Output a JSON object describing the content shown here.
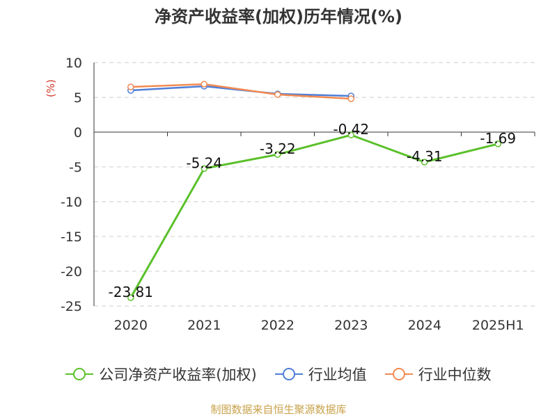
{
  "chart_data": {
    "type": "line",
    "title": "净资产收益率(加权)历年情况(%)",
    "ylabel": "(%)",
    "xlabel": "",
    "categories": [
      "2020",
      "2021",
      "2022",
      "2023",
      "2024",
      "2025H1"
    ],
    "ylim": [
      -25,
      10
    ],
    "yticks": [
      10,
      5,
      0,
      -5,
      -10,
      -15,
      -20,
      -25
    ],
    "grid": true,
    "legend_position": "bottom",
    "series": [
      {
        "name": "公司净资产收益率(加权)",
        "color": "#5ac02a",
        "values": [
          -23.81,
          -5.24,
          -3.22,
          -0.42,
          -4.31,
          -1.69
        ],
        "data_labels": [
          "-23.81",
          "-5.24",
          "-3.22",
          "-0.42",
          "-4.31",
          "-1.69"
        ]
      },
      {
        "name": "行业均值",
        "color": "#4f7ed6",
        "values": [
          6.0,
          6.6,
          5.5,
          5.2,
          null,
          null
        ]
      },
      {
        "name": "行业中位数",
        "color": "#f28a52",
        "values": [
          6.5,
          6.9,
          5.4,
          4.8,
          null,
          null
        ]
      }
    ]
  },
  "legend": {
    "items": [
      {
        "label": "公司净资产收益率(加权)",
        "color": "#5ac02a"
      },
      {
        "label": "行业均值",
        "color": "#4f7ed6"
      },
      {
        "label": "行业中位数",
        "color": "#f28a52"
      }
    ]
  },
  "source": "制图数据来自恒生聚源数据库"
}
